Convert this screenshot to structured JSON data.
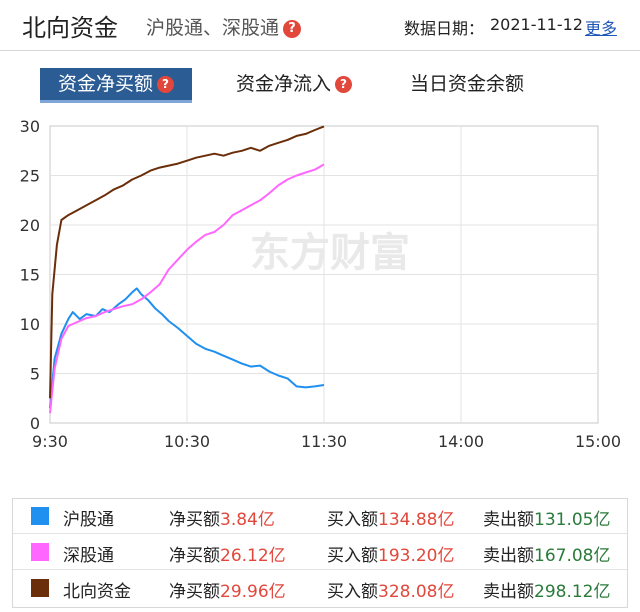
{
  "header": {
    "title": "北向资金",
    "subtitle": "沪股通、深股通",
    "help_glyph": "?",
    "date_label": "数据日期：",
    "date_value": "2021-11-12",
    "more_label": "更多"
  },
  "tabs": [
    {
      "label": "资金净买额",
      "active": true
    },
    {
      "label": "资金净流入",
      "active": false
    },
    {
      "label": "当日资金余额",
      "active": false
    }
  ],
  "watermark": "东方财富",
  "colors": {
    "hgt": "#1f8ff0",
    "sgt": "#ff66ff",
    "north": "#6b2e0a",
    "accent_red": "#e2473b",
    "active_tab": "#2b5c94"
  },
  "chart_data": {
    "type": "line",
    "title": "",
    "xlabel": "",
    "ylabel": "",
    "ylim": [
      0,
      30
    ],
    "yticks": [
      0,
      5,
      10,
      15,
      20,
      25,
      30
    ],
    "x_range": [
      "9:30",
      "15:00"
    ],
    "xticks": [
      "9:30",
      "10:30",
      "11:30",
      "14:00",
      "15:00"
    ],
    "grid": true,
    "legend_position": "bottom",
    "series": [
      {
        "name": "沪股通",
        "color": "#1f8ff0",
        "points": [
          [
            "9:30",
            1.5
          ],
          [
            "9:32",
            6.5
          ],
          [
            "9:35",
            9.0
          ],
          [
            "9:38",
            10.5
          ],
          [
            "9:40",
            11.2
          ],
          [
            "9:43",
            10.5
          ],
          [
            "9:46",
            11.0
          ],
          [
            "9:50",
            10.8
          ],
          [
            "9:53",
            11.5
          ],
          [
            "9:56",
            11.2
          ],
          [
            "10:00",
            12.0
          ],
          [
            "10:03",
            12.5
          ],
          [
            "10:06",
            13.2
          ],
          [
            "10:08",
            13.6
          ],
          [
            "10:10",
            13.0
          ],
          [
            "10:13",
            12.4
          ],
          [
            "10:16",
            11.6
          ],
          [
            "10:19",
            11.0
          ],
          [
            "10:22",
            10.3
          ],
          [
            "10:26",
            9.6
          ],
          [
            "10:30",
            8.8
          ],
          [
            "10:34",
            8.0
          ],
          [
            "10:38",
            7.5
          ],
          [
            "10:42",
            7.2
          ],
          [
            "10:46",
            6.8
          ],
          [
            "10:50",
            6.4
          ],
          [
            "10:54",
            6.0
          ],
          [
            "10:58",
            5.7
          ],
          [
            "11:02",
            5.8
          ],
          [
            "11:06",
            5.2
          ],
          [
            "11:10",
            4.8
          ],
          [
            "11:14",
            4.5
          ],
          [
            "11:18",
            3.7
          ],
          [
            "11:22",
            3.6
          ],
          [
            "11:26",
            3.7
          ],
          [
            "11:30",
            3.84
          ]
        ]
      },
      {
        "name": "深股通",
        "color": "#ff66ff",
        "points": [
          [
            "9:30",
            1.0
          ],
          [
            "9:32",
            5.5
          ],
          [
            "9:35",
            8.5
          ],
          [
            "9:38",
            9.8
          ],
          [
            "9:42",
            10.2
          ],
          [
            "9:46",
            10.6
          ],
          [
            "9:50",
            10.8
          ],
          [
            "9:54",
            11.2
          ],
          [
            "9:58",
            11.5
          ],
          [
            "10:02",
            11.8
          ],
          [
            "10:06",
            12.0
          ],
          [
            "10:10",
            12.5
          ],
          [
            "10:14",
            13.2
          ],
          [
            "10:18",
            14.0
          ],
          [
            "10:22",
            15.5
          ],
          [
            "10:26",
            16.5
          ],
          [
            "10:30",
            17.5
          ],
          [
            "10:34",
            18.3
          ],
          [
            "10:38",
            19.0
          ],
          [
            "10:42",
            19.3
          ],
          [
            "10:46",
            20.0
          ],
          [
            "10:50",
            21.0
          ],
          [
            "10:54",
            21.5
          ],
          [
            "10:58",
            22.0
          ],
          [
            "11:02",
            22.5
          ],
          [
            "11:06",
            23.2
          ],
          [
            "11:10",
            24.0
          ],
          [
            "11:14",
            24.6
          ],
          [
            "11:18",
            25.0
          ],
          [
            "11:22",
            25.3
          ],
          [
            "11:26",
            25.6
          ],
          [
            "11:30",
            26.12
          ]
        ]
      },
      {
        "name": "北向资金",
        "color": "#6b2e0a",
        "points": [
          [
            "9:30",
            2.5
          ],
          [
            "9:31",
            13.0
          ],
          [
            "9:33",
            18.0
          ],
          [
            "9:35",
            20.5
          ],
          [
            "9:38",
            21.0
          ],
          [
            "9:42",
            21.5
          ],
          [
            "9:46",
            22.0
          ],
          [
            "9:50",
            22.5
          ],
          [
            "9:54",
            23.0
          ],
          [
            "9:58",
            23.6
          ],
          [
            "10:02",
            24.0
          ],
          [
            "10:06",
            24.6
          ],
          [
            "10:10",
            25.0
          ],
          [
            "10:14",
            25.5
          ],
          [
            "10:18",
            25.8
          ],
          [
            "10:22",
            26.0
          ],
          [
            "10:26",
            26.2
          ],
          [
            "10:30",
            26.5
          ],
          [
            "10:34",
            26.8
          ],
          [
            "10:38",
            27.0
          ],
          [
            "10:42",
            27.2
          ],
          [
            "10:46",
            27.0
          ],
          [
            "10:50",
            27.3
          ],
          [
            "10:54",
            27.5
          ],
          [
            "10:58",
            27.8
          ],
          [
            "11:02",
            27.5
          ],
          [
            "11:06",
            28.0
          ],
          [
            "11:10",
            28.3
          ],
          [
            "11:14",
            28.6
          ],
          [
            "11:18",
            29.0
          ],
          [
            "11:22",
            29.2
          ],
          [
            "11:26",
            29.6
          ],
          [
            "11:30",
            29.96
          ]
        ]
      }
    ]
  },
  "legend": [
    {
      "name": "沪股通",
      "color": "#1f8ff0",
      "net_label": "净买额",
      "net_value": "3.84亿",
      "buy_label": "买入额",
      "buy_value": "134.88亿",
      "sell_label": "卖出额",
      "sell_value": "131.05亿"
    },
    {
      "name": "深股通",
      "color": "#ff66ff",
      "net_label": "净买额",
      "net_value": "26.12亿",
      "buy_label": "买入额",
      "buy_value": "193.20亿",
      "sell_label": "卖出额",
      "sell_value": "167.08亿"
    },
    {
      "name": "北向资金",
      "color": "#6b2e0a",
      "net_label": "净买额",
      "net_value": "29.96亿",
      "buy_label": "买入额",
      "buy_value": "328.08亿",
      "sell_label": "卖出额",
      "sell_value": "298.12亿"
    }
  ]
}
